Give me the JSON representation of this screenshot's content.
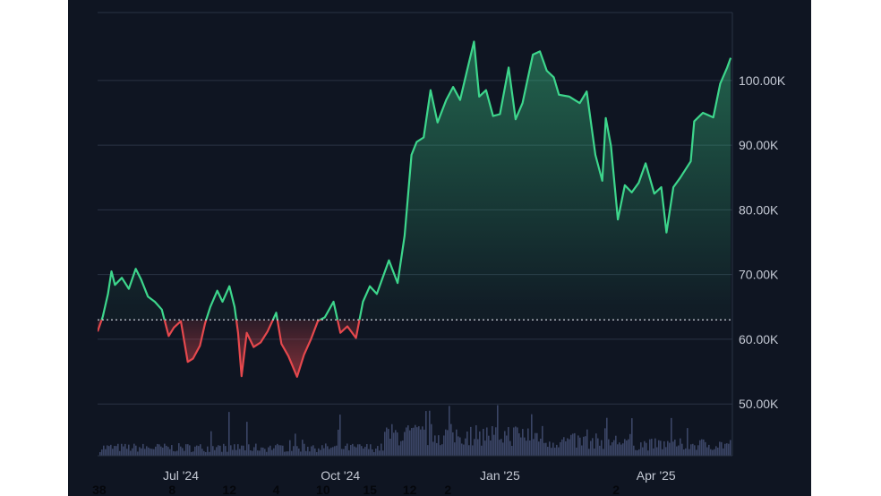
{
  "colors": {
    "background": "#0f1522",
    "grid": "#2a3344",
    "up": "#3dd68c",
    "down": "#e5484d",
    "volume": "#3b4566",
    "baseline": "#c9ced8"
  },
  "chart_data": {
    "type": "area",
    "baseline_value": 63000,
    "y_ticks": [
      "50.00K",
      "60.00K",
      "70.00K",
      "80.00K",
      "90.00K",
      "100.00K"
    ],
    "y_tick_values": [
      50000,
      60000,
      70000,
      80000,
      90000,
      100000
    ],
    "ylim": [
      42000,
      110500
    ],
    "x_ticks": [
      "Jul '24",
      "Oct '24",
      "Jan '25",
      "Apr '25"
    ],
    "x_tick_dates": [
      "2024-07-01",
      "2024-10-01",
      "2025-01-01",
      "2025-04-01"
    ],
    "bottom_numbers": [
      {
        "text": "38",
        "date": "2024-05-15"
      },
      {
        "text": "8",
        "date": "2024-06-26"
      },
      {
        "text": "12",
        "date": "2024-07-29"
      },
      {
        "text": "4",
        "date": "2024-08-25"
      },
      {
        "text": "10",
        "date": "2024-09-21"
      },
      {
        "text": "15",
        "date": "2024-10-18"
      },
      {
        "text": "12",
        "date": "2024-11-10"
      },
      {
        "text": "2",
        "date": "2024-12-02"
      },
      {
        "text": "2",
        "date": "2025-03-09"
      }
    ],
    "series": [
      {
        "points": [
          [
            "2024-05-14",
            61200
          ],
          [
            "2024-05-17",
            63500
          ],
          [
            "2024-05-20",
            67000
          ],
          [
            "2024-05-22",
            70500
          ],
          [
            "2024-05-24",
            68400
          ],
          [
            "2024-05-28",
            69500
          ],
          [
            "2024-06-01",
            67800
          ],
          [
            "2024-06-05",
            70900
          ],
          [
            "2024-06-08",
            69300
          ],
          [
            "2024-06-12",
            66600
          ],
          [
            "2024-06-16",
            65800
          ],
          [
            "2024-06-20",
            64600
          ],
          [
            "2024-06-24",
            60500
          ],
          [
            "2024-06-27",
            61800
          ],
          [
            "2024-07-01",
            62800
          ],
          [
            "2024-07-05",
            56500
          ],
          [
            "2024-07-08",
            57000
          ],
          [
            "2024-07-12",
            59000
          ],
          [
            "2024-07-15",
            62500
          ],
          [
            "2024-07-18",
            65000
          ],
          [
            "2024-07-22",
            67500
          ],
          [
            "2024-07-25",
            65800
          ],
          [
            "2024-07-29",
            68200
          ],
          [
            "2024-08-01",
            65000
          ],
          [
            "2024-08-03",
            61000
          ],
          [
            "2024-08-05",
            54300
          ],
          [
            "2024-08-08",
            61000
          ],
          [
            "2024-08-12",
            58800
          ],
          [
            "2024-08-16",
            59500
          ],
          [
            "2024-08-20",
            61200
          ],
          [
            "2024-08-25",
            64100
          ],
          [
            "2024-08-28",
            59300
          ],
          [
            "2024-09-01",
            57400
          ],
          [
            "2024-09-06",
            54200
          ],
          [
            "2024-09-10",
            57600
          ],
          [
            "2024-09-14",
            60000
          ],
          [
            "2024-09-18",
            62800
          ],
          [
            "2024-09-22",
            63400
          ],
          [
            "2024-09-27",
            65800
          ],
          [
            "2024-10-01",
            61000
          ],
          [
            "2024-10-05",
            62000
          ],
          [
            "2024-10-10",
            60200
          ],
          [
            "2024-10-14",
            65800
          ],
          [
            "2024-10-18",
            68200
          ],
          [
            "2024-10-22",
            67000
          ],
          [
            "2024-10-29",
            72200
          ],
          [
            "2024-11-03",
            68700
          ],
          [
            "2024-11-07",
            76000
          ],
          [
            "2024-11-11",
            88500
          ],
          [
            "2024-11-14",
            90500
          ],
          [
            "2024-11-18",
            91200
          ],
          [
            "2024-11-22",
            98500
          ],
          [
            "2024-11-26",
            93500
          ],
          [
            "2024-12-01",
            97000
          ],
          [
            "2024-12-05",
            99000
          ],
          [
            "2024-12-09",
            97000
          ],
          [
            "2024-12-13",
            101500
          ],
          [
            "2024-12-17",
            106000
          ],
          [
            "2024-12-20",
            97500
          ],
          [
            "2024-12-24",
            98500
          ],
          [
            "2024-12-28",
            94500
          ],
          [
            "2025-01-01",
            94800
          ],
          [
            "2025-01-06",
            102000
          ],
          [
            "2025-01-10",
            94000
          ],
          [
            "2025-01-14",
            96500
          ],
          [
            "2025-01-20",
            104000
          ],
          [
            "2025-01-24",
            104500
          ],
          [
            "2025-01-28",
            101500
          ],
          [
            "2025-02-01",
            100500
          ],
          [
            "2025-02-04",
            97800
          ],
          [
            "2025-02-10",
            97500
          ],
          [
            "2025-02-16",
            96500
          ],
          [
            "2025-02-20",
            98300
          ],
          [
            "2025-02-25",
            88500
          ],
          [
            "2025-03-01",
            84500
          ],
          [
            "2025-03-03",
            94200
          ],
          [
            "2025-03-06",
            89900
          ],
          [
            "2025-03-10",
            78500
          ],
          [
            "2025-03-14",
            83800
          ],
          [
            "2025-03-18",
            82700
          ],
          [
            "2025-03-22",
            84200
          ],
          [
            "2025-03-26",
            87200
          ],
          [
            "2025-03-31",
            82500
          ],
          [
            "2025-04-04",
            83500
          ],
          [
            "2025-04-07",
            76500
          ],
          [
            "2025-04-11",
            83500
          ],
          [
            "2025-04-15",
            85000
          ],
          [
            "2025-04-21",
            87500
          ],
          [
            "2025-04-23",
            93700
          ],
          [
            "2025-04-28",
            95000
          ],
          [
            "2025-05-04",
            94300
          ],
          [
            "2025-05-08",
            99500
          ],
          [
            "2025-05-12",
            102000
          ],
          [
            "2025-05-14",
            103500
          ]
        ]
      }
    ]
  }
}
